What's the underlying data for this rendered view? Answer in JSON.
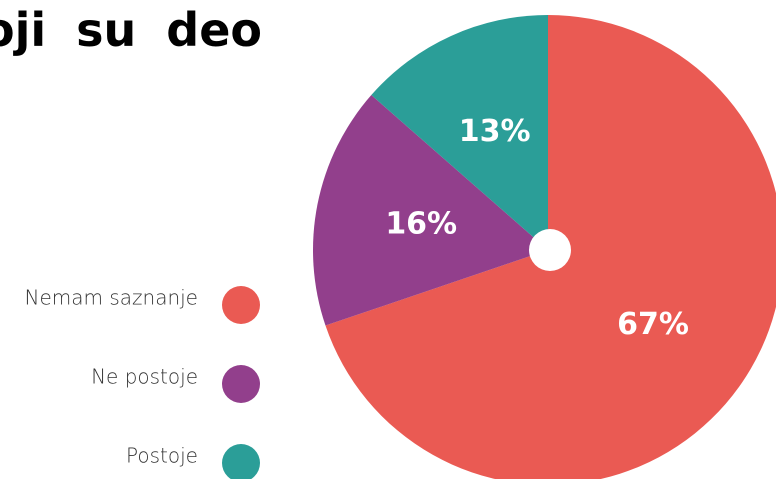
{
  "chart_data": {
    "type": "pie",
    "title": "oji su deo",
    "categories": [
      "Nemam saznanje",
      "Ne postoje",
      "Postoje"
    ],
    "values": [
      67,
      16,
      13
    ],
    "value_labels": [
      "67%",
      "16%",
      "13%"
    ],
    "colors": [
      "#ea5a53",
      "#923f8c",
      "#2b9e98"
    ],
    "legend": "left"
  }
}
